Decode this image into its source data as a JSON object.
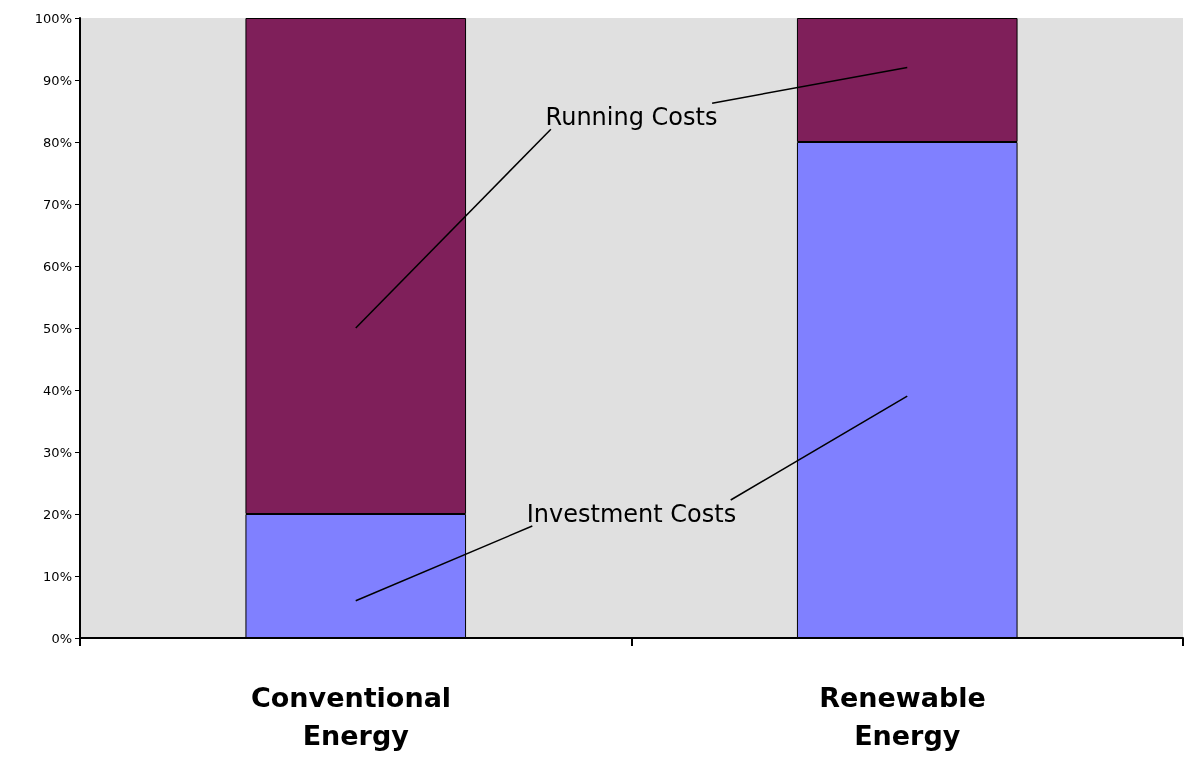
{
  "chart_data": {
    "type": "bar",
    "stacked": true,
    "categories": [
      "Conventional Energy",
      "Renewable Energy"
    ],
    "series": [
      {
        "name": "Investment Costs",
        "color": "#8080ff",
        "values": [
          20,
          80
        ]
      },
      {
        "name": "Running Costs",
        "color": "#7f1f5a",
        "values": [
          80,
          20
        ]
      }
    ],
    "ylim": [
      0,
      100
    ],
    "yticks": [
      {
        "value": 0,
        "label": "0%"
      },
      {
        "value": 10,
        "label": "10%"
      },
      {
        "value": 20,
        "label": "20%"
      },
      {
        "value": 30,
        "label": "30%"
      },
      {
        "value": 40,
        "label": "40%"
      },
      {
        "value": 50,
        "label": "50%"
      },
      {
        "value": 60,
        "label": "60%"
      },
      {
        "value": 70,
        "label": "70%"
      },
      {
        "value": 80,
        "label": "80%"
      },
      {
        "value": 90,
        "label": "90%"
      },
      {
        "value": 100,
        "label": "100%"
      }
    ],
    "data_labels": false
  }
}
